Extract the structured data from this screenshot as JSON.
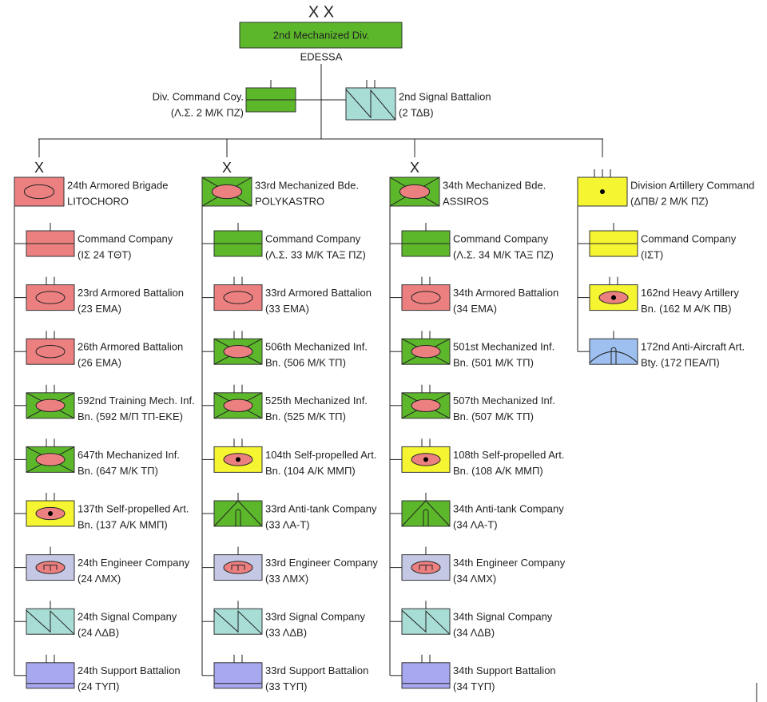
{
  "division": {
    "echelon": "X X",
    "name": "2nd Mechanized Div.",
    "location": "EDESSA"
  },
  "hq_units": [
    {
      "name": "Div. Command Coy.",
      "detail": "(Λ.Σ. 2 Μ/Κ ΠΖ)"
    },
    {
      "name": "2nd Signal Battalion",
      "detail": "(2 ΤΔΒ)"
    }
  ],
  "brigades": [
    {
      "echelon": "X",
      "name": "24th Armored Brigade",
      "detail": "LITOCHORO",
      "units": [
        {
          "name": "Command Company",
          "detail": "(ΙΣ 24 ΤΘΤ)"
        },
        {
          "name": "23rd Armored Battalion",
          "detail": "(23 ΕΜΑ)"
        },
        {
          "name": "26th Armored Battalion",
          "detail": "(26 ΕΜΑ)"
        },
        {
          "name": "592nd Training Mech. Inf.",
          "detail": "Bn. (592 Μ/Π ΤΠ-ΕΚΕ)"
        },
        {
          "name": "647th Mechanized Inf.",
          "detail": "Bn. (647 Μ/Κ ΤΠ)"
        },
        {
          "name": "137th Self-propelled Art.",
          "detail": "Bn. (137 Α/Κ ΜΜΠ)"
        },
        {
          "name": "24th Engineer Company",
          "detail": "(24 ΛΜΧ)"
        },
        {
          "name": "24th Signal Company",
          "detail": "(24 ΛΔΒ)"
        },
        {
          "name": "24th Support Battalion",
          "detail": "(24 ΤΥΠ)"
        }
      ]
    },
    {
      "echelon": "X",
      "name": "33rd Mechanized Bde.",
      "detail": "POLYKASTRO",
      "units": [
        {
          "name": "Command Company",
          "detail": "(Λ.Σ. 33 Μ/Κ ΤΑΞ ΠΖ)"
        },
        {
          "name": "33rd Armored Battalion",
          "detail": "(33 ΕΜΑ)"
        },
        {
          "name": "506th Mechanized Inf.",
          "detail": "Bn. (506 Μ/Κ ΤΠ)"
        },
        {
          "name": "525th Mechanized Inf.",
          "detail": "Bn. (525 Μ/Κ ΤΠ)"
        },
        {
          "name": "104th Self-propelled Art.",
          "detail": "Bn. (104 Α/Κ ΜΜΠ)"
        },
        {
          "name": "33rd Anti-tank Company",
          "detail": "(33 ΛΑ-Τ)"
        },
        {
          "name": "33rd Engineer Company",
          "detail": "(33 ΛΜΧ)"
        },
        {
          "name": "33rd Signal Company",
          "detail": "(33 ΛΔΒ)"
        },
        {
          "name": "33rd Support Battalion",
          "detail": "(33 ΤΥΠ)"
        }
      ]
    },
    {
      "echelon": "X",
      "name": "34th Mechanized Bde.",
      "detail": "ASSIROS",
      "units": [
        {
          "name": "Command Company",
          "detail": "(Λ.Σ. 34 Μ/Κ ΤΑΞ ΠΖ)"
        },
        {
          "name": "34th Armored Battalion",
          "detail": "(34 ΕΜΑ)"
        },
        {
          "name": "501st Mechanized Inf.",
          "detail": "Bn. (501 Μ/Κ ΤΠ)"
        },
        {
          "name": "507th Mechanized Inf.",
          "detail": "Bn. (507 Μ/Κ ΤΠ)"
        },
        {
          "name": "108th Self-propelled Art.",
          "detail": "Bn. (108 Α/Κ ΜΜΠ)"
        },
        {
          "name": "34th Anti-tank Company",
          "detail": "(34 ΛΑ-Τ)"
        },
        {
          "name": "34th Engineer Company",
          "detail": "(34 ΛΜΧ)"
        },
        {
          "name": "34th Signal Company",
          "detail": "(34 ΛΔΒ)"
        },
        {
          "name": "34th Support Battalion",
          "detail": "(34 ΤΥΠ)"
        }
      ]
    },
    {
      "name": "Division Artillery Command",
      "detail": "(ΔΠΒ/ 2 Μ/Κ ΠΖ)",
      "units": [
        {
          "name": "Command Company",
          "detail": "(ΙΣΤ)"
        },
        {
          "name": "162nd Heavy Artillery",
          "detail": "Bn. (162 Μ Α/Κ ΠΒ)"
        },
        {
          "name": "172nd Anti-Aircraft Art.",
          "detail": "Bty. (172 ΠΕΑ/Π)"
        }
      ]
    }
  ]
}
